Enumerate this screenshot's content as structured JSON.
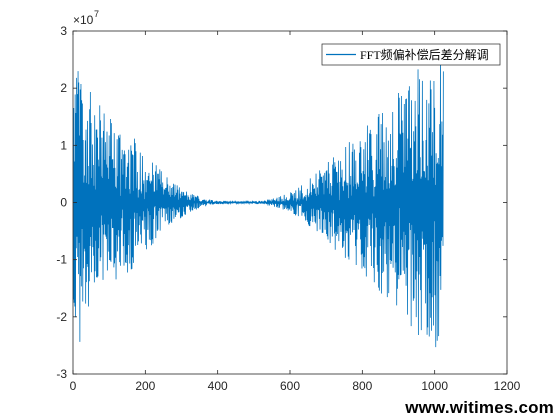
{
  "chart_data": {
    "type": "line",
    "title": "",
    "xlabel": "",
    "ylabel": "",
    "xlim": [
      0,
      1200
    ],
    "ylim": [
      -3,
      3
    ],
    "y_scale_label": "×10",
    "y_scale_exponent": "7",
    "x_ticks": [
      0,
      200,
      400,
      600,
      800,
      1000,
      1200
    ],
    "y_ticks": [
      -3,
      -2,
      -1,
      0,
      1,
      2,
      3
    ],
    "x_tick_labels": [
      "0",
      "200",
      "400",
      "600",
      "800",
      "1000",
      "1200"
    ],
    "y_tick_labels": [
      "-3",
      "-2",
      "-1",
      "0",
      "1",
      "2",
      "3"
    ],
    "grid": false,
    "legend_position": "top-right",
    "series": [
      {
        "name": "FFT频偏补偿后差分解调",
        "color": "#0072BD",
        "n_points": 1024,
        "envelope": {
          "x": [
            1,
            20,
            40,
            80,
            120,
            160,
            200,
            240,
            280,
            320,
            360,
            400,
            440,
            480,
            520,
            560,
            600,
            640,
            680,
            720,
            760,
            800,
            840,
            880,
            920,
            960,
            1000,
            1010,
            1024
          ],
          "peak": [
            2.4,
            2.5,
            2.0,
            1.7,
            1.45,
            1.2,
            0.9,
            0.6,
            0.35,
            0.18,
            0.08,
            0.03,
            0.02,
            0.02,
            0.03,
            0.08,
            0.18,
            0.35,
            0.55,
            0.8,
            1.05,
            1.3,
            1.55,
            1.8,
            2.1,
            2.4,
            2.7,
            2.9,
            2.6
          ]
        }
      }
    ]
  },
  "watermark": "www.witimes.com"
}
